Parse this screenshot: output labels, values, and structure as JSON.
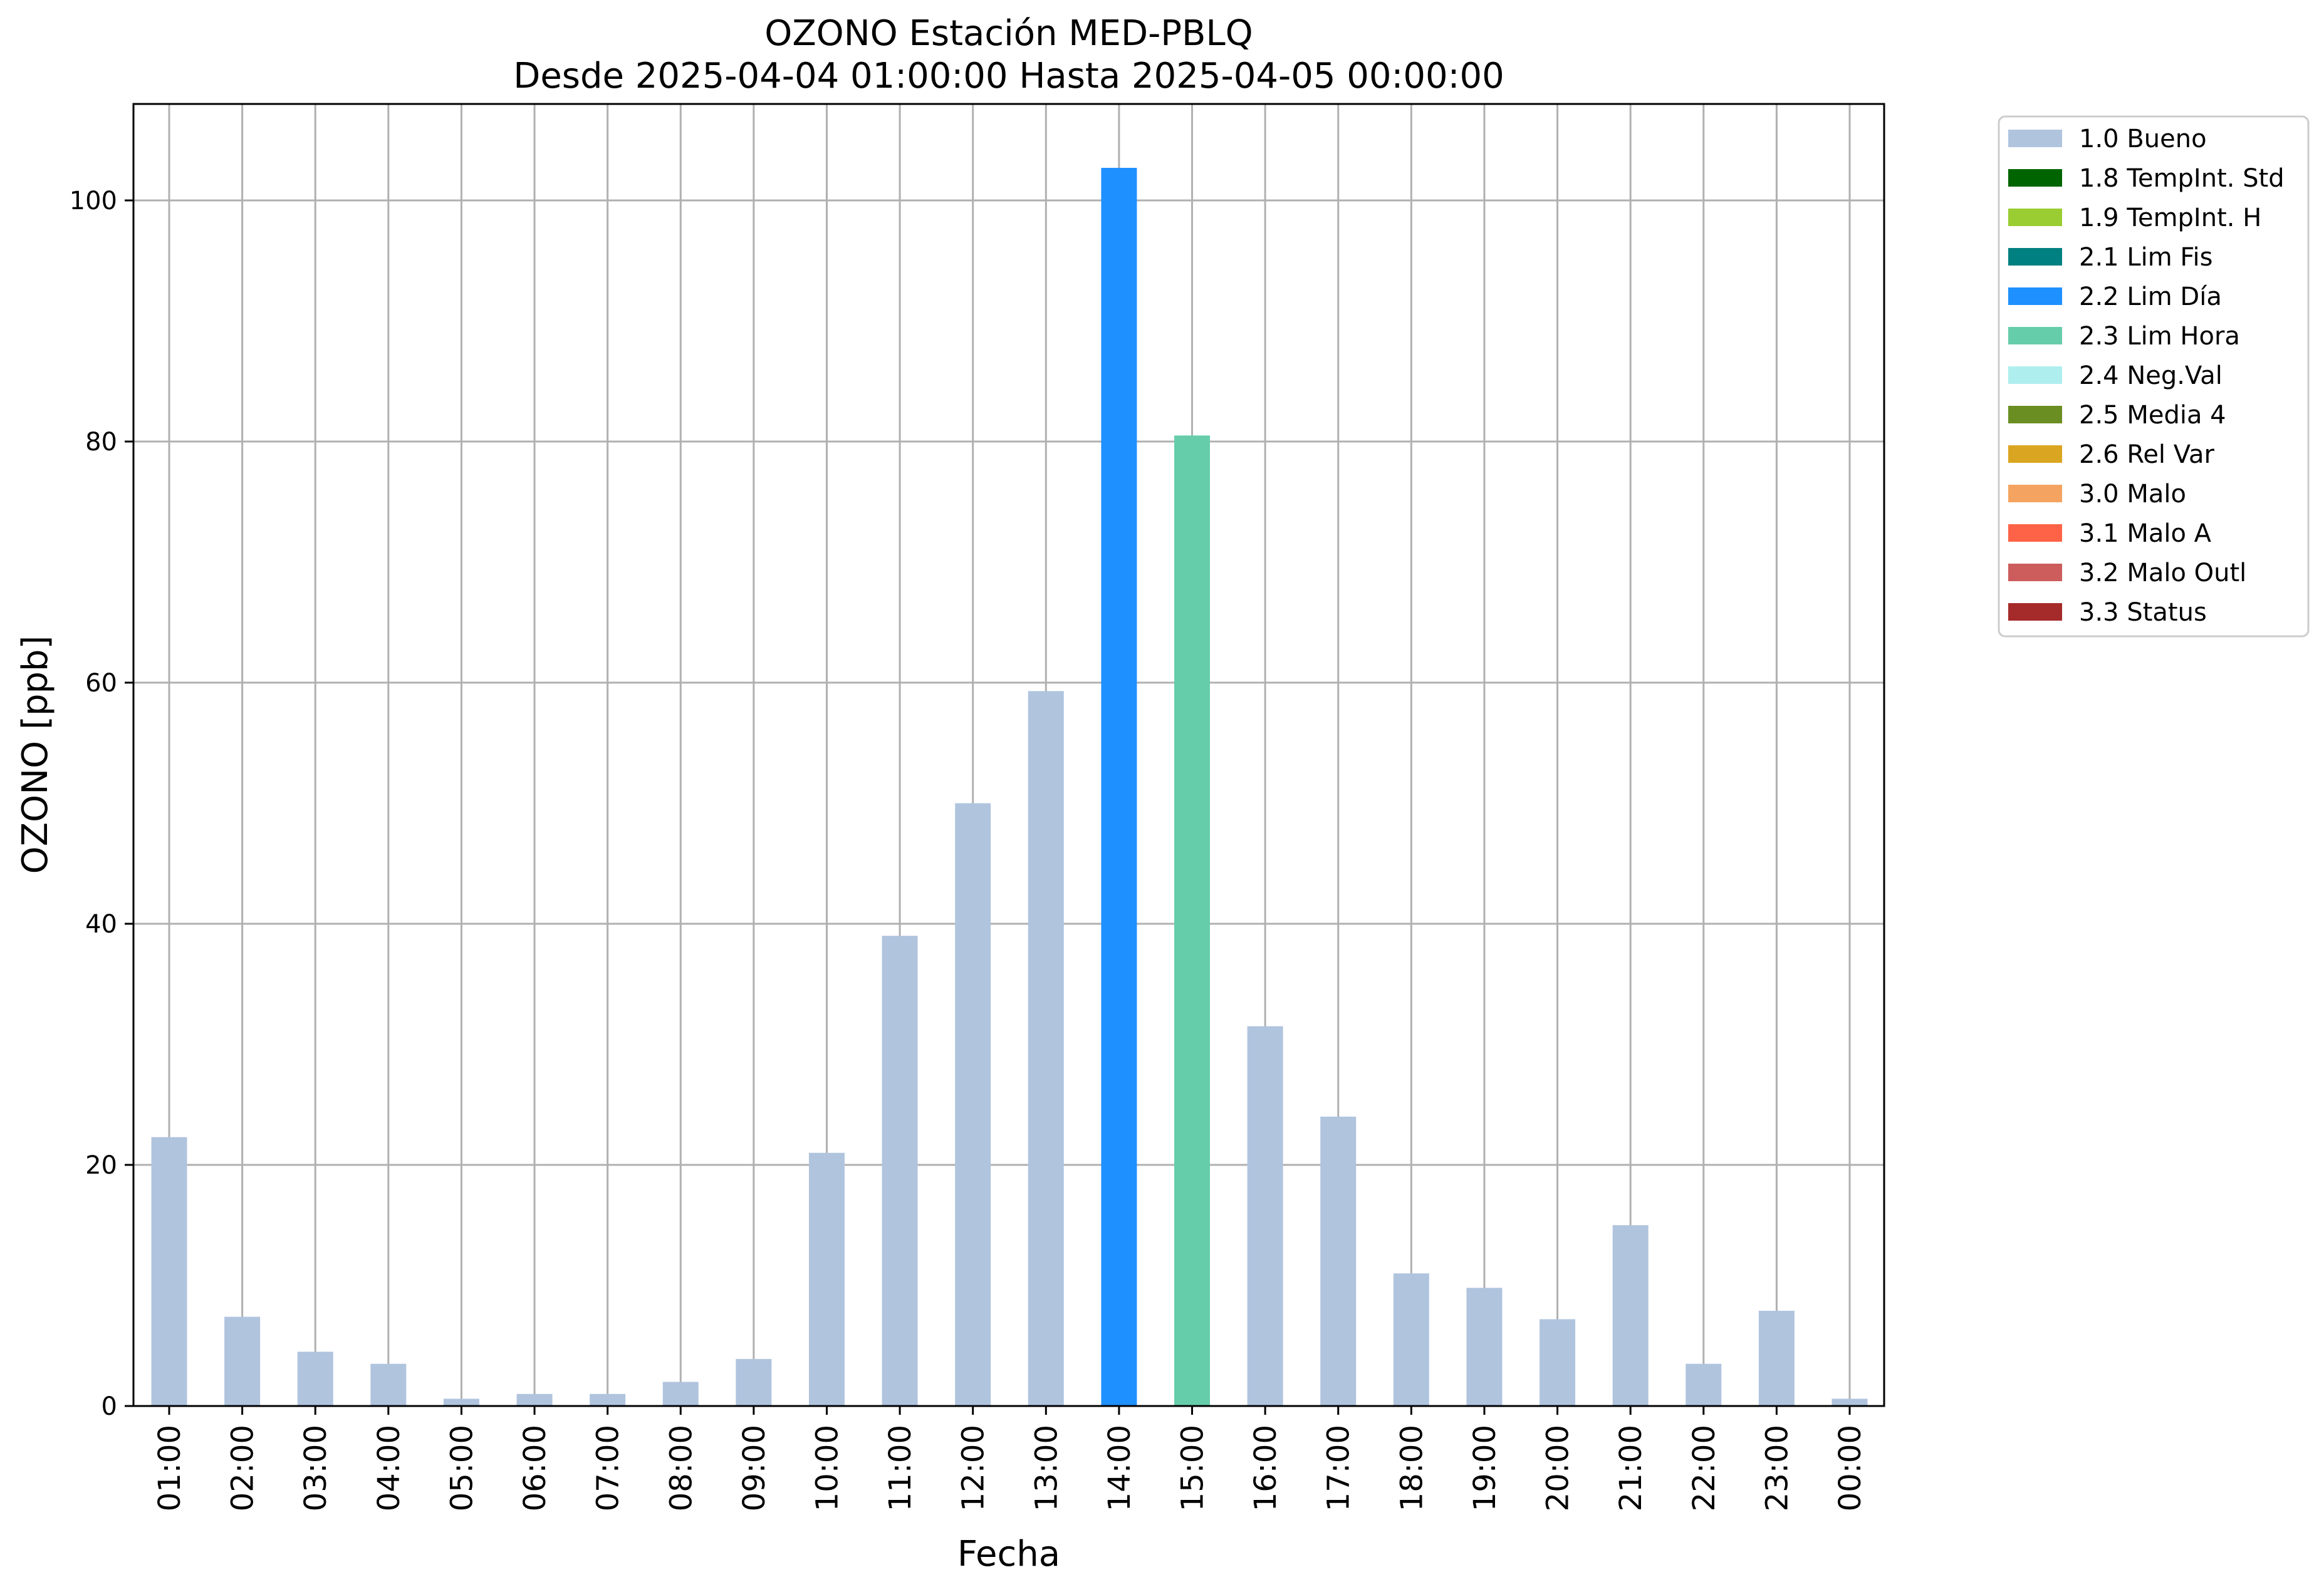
{
  "chart_data": {
    "type": "bar",
    "title": "OZONO Estación MED-PBLQ",
    "subtitle": "Desde 2025-04-04 01:00:00 Hasta 2025-04-05 00:00:00",
    "xlabel": "Fecha",
    "ylabel": "OZONO [ppb]",
    "ylim": [
      0,
      108
    ],
    "yticks": [
      0,
      20,
      40,
      60,
      80,
      100
    ],
    "grid": true,
    "legend_placement": "outside-top-right",
    "categories": [
      "01:00",
      "02:00",
      "03:00",
      "04:00",
      "05:00",
      "06:00",
      "07:00",
      "08:00",
      "09:00",
      "10:00",
      "11:00",
      "12:00",
      "13:00",
      "14:00",
      "15:00",
      "16:00",
      "17:00",
      "18:00",
      "19:00",
      "20:00",
      "21:00",
      "22:00",
      "23:00",
      "00:00"
    ],
    "values": [
      22.3,
      7.4,
      4.5,
      3.5,
      0.6,
      1.0,
      1.0,
      2.0,
      3.9,
      21.0,
      39.0,
      50.0,
      59.3,
      102.7,
      80.5,
      31.5,
      24.0,
      11.0,
      9.8,
      7.2,
      15.0,
      3.5,
      7.9,
      0.6
    ],
    "flags": [
      "1.0 Bueno",
      "1.0 Bueno",
      "1.0 Bueno",
      "1.0 Bueno",
      "1.0 Bueno",
      "1.0 Bueno",
      "1.0 Bueno",
      "1.0 Bueno",
      "1.0 Bueno",
      "1.0 Bueno",
      "1.0 Bueno",
      "1.0 Bueno",
      "1.0 Bueno",
      "2.2 Lim Día",
      "2.3 Lim Hora",
      "1.0 Bueno",
      "1.0 Bueno",
      "1.0 Bueno",
      "1.0 Bueno",
      "1.0 Bueno",
      "1.0 Bueno",
      "1.0 Bueno",
      "1.0 Bueno",
      "1.0 Bueno"
    ],
    "legend": [
      {
        "label": "1.0 Bueno",
        "color": "#b0c4de"
      },
      {
        "label": "1.8 TempInt. Std",
        "color": "#006400"
      },
      {
        "label": "1.9 TempInt. H",
        "color": "#9acd32"
      },
      {
        "label": "2.1 Lim Fis",
        "color": "#008080"
      },
      {
        "label": "2.2 Lim Día",
        "color": "#1e90ff"
      },
      {
        "label": "2.3 Lim Hora",
        "color": "#66cdaa"
      },
      {
        "label": "2.4 Neg.Val",
        "color": "#afeeee"
      },
      {
        "label": "2.5 Media 4",
        "color": "#6b8e23"
      },
      {
        "label": "2.6 Rel Var",
        "color": "#daa520"
      },
      {
        "label": "3.0 Malo",
        "color": "#f4a460"
      },
      {
        "label": "3.1 Malo A",
        "color": "#ff6347"
      },
      {
        "label": "3.2 Malo Outl",
        "color": "#cd5c5c"
      },
      {
        "label": "3.3 Status",
        "color": "#a52a2a"
      }
    ],
    "grid_color": "#b0b0b0"
  }
}
